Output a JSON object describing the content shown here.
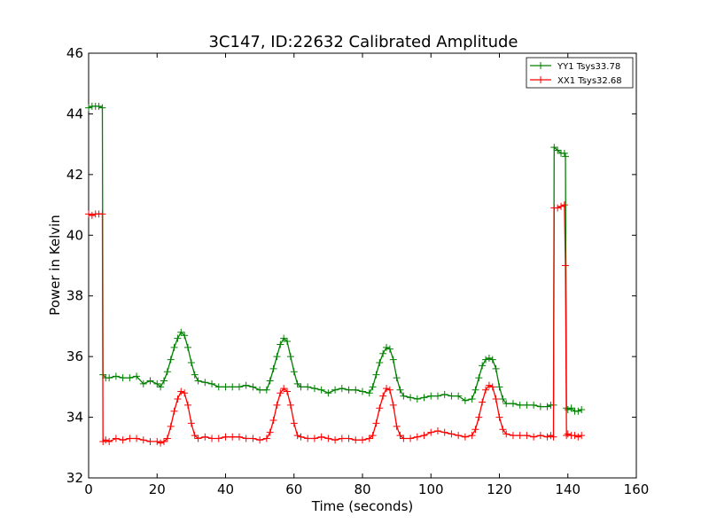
{
  "chart_data": {
    "type": "line",
    "title": "3C147, ID:22632 Calibrated Amplitude",
    "xlabel": "Time (seconds)",
    "ylabel": "Power in Kelvin",
    "xlim": [
      0,
      160
    ],
    "ylim": [
      32,
      46
    ],
    "xticks": [
      0,
      20,
      40,
      60,
      80,
      100,
      120,
      140,
      160
    ],
    "yticks": [
      32,
      34,
      36,
      38,
      40,
      42,
      44,
      46
    ],
    "grid": false,
    "legend_position": "top-right",
    "marker": "plus",
    "series": [
      {
        "name": "YY1 Tsys33.78",
        "color": "#008000",
        "x": [
          0,
          1,
          2,
          3,
          4,
          4.2,
          5,
          6,
          8,
          10,
          12,
          14,
          16,
          18,
          20,
          21,
          22,
          23,
          24,
          25,
          26,
          27,
          28,
          29,
          30,
          31,
          32,
          34,
          36,
          38,
          40,
          42,
          44,
          46,
          48,
          50,
          52,
          53,
          54,
          55,
          56,
          57,
          58,
          59,
          60,
          61,
          62,
          64,
          66,
          68,
          70,
          72,
          74,
          76,
          78,
          80,
          82,
          83,
          84,
          85,
          86,
          87,
          88,
          89,
          90,
          91,
          92,
          94,
          96,
          98,
          100,
          102,
          104,
          106,
          108,
          110,
          112,
          113,
          114,
          115,
          116,
          117,
          118,
          119,
          120,
          121,
          122,
          124,
          126,
          128,
          130,
          132,
          134,
          135,
          135.8,
          136,
          137,
          138,
          139,
          139.3,
          139.6,
          140,
          141,
          142,
          143,
          144
        ],
        "values": [
          44.2,
          44.25,
          44.25,
          44.25,
          44.2,
          35.4,
          35.3,
          35.3,
          35.35,
          35.3,
          35.3,
          35.35,
          35.1,
          35.2,
          35.1,
          35.0,
          35.2,
          35.5,
          35.9,
          36.3,
          36.6,
          36.8,
          36.7,
          36.3,
          35.8,
          35.4,
          35.2,
          35.15,
          35.1,
          35.0,
          35.0,
          35.0,
          35.0,
          35.05,
          35.0,
          34.9,
          34.9,
          35.2,
          35.6,
          36.0,
          36.4,
          36.6,
          36.5,
          36.0,
          35.5,
          35.1,
          35.0,
          35.0,
          34.95,
          34.9,
          34.8,
          34.9,
          34.95,
          34.9,
          34.9,
          34.85,
          34.8,
          35.0,
          35.4,
          35.8,
          36.1,
          36.3,
          36.25,
          35.9,
          35.3,
          34.9,
          34.7,
          34.65,
          34.6,
          34.65,
          34.7,
          34.7,
          34.75,
          34.7,
          34.7,
          34.55,
          34.6,
          34.9,
          35.3,
          35.7,
          35.9,
          35.95,
          35.9,
          35.6,
          35.0,
          34.6,
          34.45,
          34.45,
          34.4,
          34.4,
          34.4,
          34.35,
          34.35,
          34.4,
          34.4,
          42.9,
          42.8,
          42.7,
          42.7,
          42.6,
          34.3,
          34.25,
          34.3,
          34.2,
          34.2,
          34.25
        ]
      },
      {
        "name": "XX1 Tsys32.68",
        "color": "#ff0000",
        "x": [
          0,
          1,
          2,
          3,
          4,
          4.2,
          5,
          6,
          8,
          10,
          12,
          14,
          16,
          18,
          20,
          21,
          22,
          23,
          24,
          25,
          26,
          27,
          28,
          29,
          30,
          31,
          32,
          34,
          36,
          38,
          40,
          42,
          44,
          46,
          48,
          50,
          52,
          53,
          54,
          55,
          56,
          57,
          58,
          59,
          60,
          61,
          62,
          64,
          66,
          68,
          70,
          72,
          74,
          76,
          78,
          80,
          82,
          83,
          84,
          85,
          86,
          87,
          88,
          89,
          90,
          91,
          92,
          94,
          96,
          98,
          100,
          102,
          104,
          106,
          108,
          110,
          112,
          113,
          114,
          115,
          116,
          117,
          118,
          119,
          120,
          121,
          122,
          124,
          126,
          128,
          130,
          132,
          134,
          135,
          135.8,
          136,
          137,
          138,
          139,
          139.3,
          139.6,
          140,
          141,
          142,
          143,
          144
        ],
        "values": [
          40.7,
          40.65,
          40.7,
          40.7,
          40.7,
          33.2,
          33.25,
          33.2,
          33.3,
          33.25,
          33.3,
          33.3,
          33.25,
          33.2,
          33.2,
          33.15,
          33.2,
          33.3,
          33.7,
          34.2,
          34.6,
          34.85,
          34.8,
          34.4,
          33.8,
          33.4,
          33.3,
          33.35,
          33.3,
          33.3,
          33.35,
          33.35,
          33.35,
          33.3,
          33.3,
          33.25,
          33.3,
          33.5,
          33.9,
          34.4,
          34.8,
          34.95,
          34.85,
          34.4,
          33.8,
          33.4,
          33.35,
          33.3,
          33.3,
          33.35,
          33.3,
          33.25,
          33.3,
          33.3,
          33.25,
          33.25,
          33.3,
          33.4,
          33.8,
          34.3,
          34.7,
          34.95,
          34.9,
          34.4,
          33.7,
          33.4,
          33.3,
          33.3,
          33.35,
          33.4,
          33.5,
          33.55,
          33.5,
          33.45,
          33.4,
          33.35,
          33.4,
          33.6,
          34.0,
          34.5,
          34.9,
          35.05,
          35.0,
          34.6,
          34.0,
          33.6,
          33.45,
          33.4,
          33.4,
          33.4,
          33.35,
          33.4,
          33.35,
          33.4,
          33.35,
          40.9,
          40.9,
          40.95,
          41.0,
          39.0,
          33.4,
          33.45,
          33.4,
          33.4,
          33.35,
          33.4
        ]
      }
    ]
  }
}
